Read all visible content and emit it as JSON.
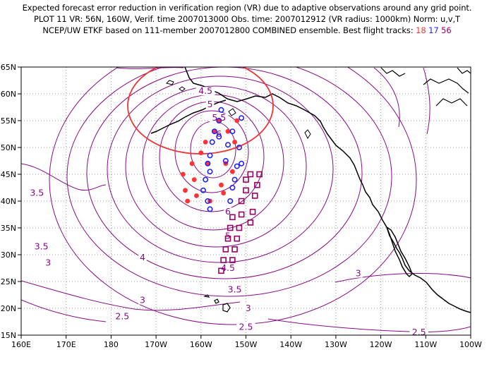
{
  "header": {
    "line1": "Expected forecast error reduction in verification region (VR) due to adaptive observations around any grid point.",
    "line2": "PLOT 11 VR: 56N, 160W, Verif. time 2007013000 Obs. time: 2007012912 (VR radius: 1000km) Norm: u,v,T",
    "line3_prefix": "NCEP/UW ETKF based on 111-member 2007012800 COMBINED ensemble.  Best flight tracks:",
    "track_ids": [
      "18",
      "17",
      "56"
    ]
  },
  "colors": {
    "contour": "#880a88",
    "coast": "#000000",
    "grid": "#9a9a9a",
    "verification_circle": "#ee3333",
    "track_18": "#ff3333",
    "track_17": "#2222ff",
    "track_56": "#990066"
  },
  "axes": {
    "x_ticks": [
      "160E",
      "170E",
      "180",
      "170W",
      "160W",
      "150W",
      "140W",
      "130W",
      "120W",
      "110W",
      "100W"
    ],
    "y_ticks": [
      "65N",
      "60N",
      "55N",
      "50N",
      "45N",
      "40N",
      "35N",
      "30N",
      "25N",
      "20N",
      "15N"
    ],
    "lon_range_east": [
      160,
      260
    ],
    "lat_range": [
      15,
      65
    ]
  },
  "verification_region": {
    "center_lat": 56,
    "center_lon_east": 200,
    "radius_km": 1000
  },
  "contour_labels": [
    {
      "text": "4.5",
      "lon": 201,
      "lat": 60.5
    },
    {
      "text": "5",
      "lon": 202,
      "lat": 58
    },
    {
      "text": "5.5",
      "lon": 204,
      "lat": 55.5
    },
    {
      "text": "6",
      "lon": 204,
      "lat": 52.5
    },
    {
      "text": "3.5",
      "lon": 163.5,
      "lat": 41.5
    },
    {
      "text": "3.5",
      "lon": 164.5,
      "lat": 31.5
    },
    {
      "text": "3",
      "lon": 166,
      "lat": 28.5
    },
    {
      "text": "4",
      "lon": 187,
      "lat": 29.5
    },
    {
      "text": "3",
      "lon": 187,
      "lat": 21.5
    },
    {
      "text": "2.5",
      "lon": 182.5,
      "lat": 18.5
    },
    {
      "text": "6",
      "lon": 206,
      "lat": 38
    },
    {
      "text": "5",
      "lon": 206,
      "lat": 33.5
    },
    {
      "text": "4.5",
      "lon": 206,
      "lat": 27.5
    },
    {
      "text": "3.5",
      "lon": 207.5,
      "lat": 23.5
    },
    {
      "text": "3",
      "lon": 210.5,
      "lat": 20
    },
    {
      "text": "2.5",
      "lon": 210,
      "lat": 16.5
    },
    {
      "text": "3",
      "lon": 235,
      "lat": 26.5
    },
    {
      "text": "2.5",
      "lon": 248.5,
      "lat": 15.5
    }
  ],
  "tracks": [
    {
      "id": "18",
      "points": [
        [
          196,
          45
        ],
        [
          196.5,
          42
        ],
        [
          197,
          40
        ],
        [
          198,
          47
        ],
        [
          198.5,
          44
        ],
        [
          199,
          41
        ],
        [
          200,
          49
        ],
        [
          201,
          51
        ],
        [
          201.5,
          47
        ],
        [
          202,
          40
        ],
        [
          203,
          53
        ],
        [
          204,
          55
        ],
        [
          204.5,
          43
        ],
        [
          205,
          41.5
        ],
        [
          205.5,
          47
        ],
        [
          206,
          53
        ],
        [
          207,
          45.5
        ],
        [
          207.5,
          51
        ],
        [
          208,
          55
        ]
      ]
    },
    {
      "id": "17",
      "points": [
        [
          200.5,
          42
        ],
        [
          201.5,
          40
        ],
        [
          202,
          38.5
        ],
        [
          201,
          44
        ],
        [
          201.5,
          47
        ],
        [
          202,
          45.5
        ],
        [
          202,
          48.5
        ],
        [
          202.5,
          51
        ],
        [
          203,
          53
        ],
        [
          204,
          52
        ],
        [
          204,
          55
        ],
        [
          204.5,
          57
        ],
        [
          205.5,
          47.5
        ],
        [
          206,
          50.5
        ],
        [
          206.5,
          40
        ],
        [
          207,
          42.5
        ],
        [
          207.5,
          44
        ],
        [
          207,
          53
        ],
        [
          208,
          46.5
        ],
        [
          208.5,
          50
        ],
        [
          209,
          47
        ],
        [
          209,
          55.5
        ]
      ]
    },
    {
      "id": "56",
      "points": [
        [
          204.5,
          27
        ],
        [
          205,
          29
        ],
        [
          205.5,
          31
        ],
        [
          206,
          33
        ],
        [
          206.5,
          35
        ],
        [
          207,
          37
        ],
        [
          207,
          29
        ],
        [
          207.5,
          31
        ],
        [
          208,
          33
        ],
        [
          208.5,
          35
        ],
        [
          209,
          37.5
        ],
        [
          209,
          40
        ],
        [
          210,
          42
        ],
        [
          210,
          44
        ],
        [
          211,
          45
        ],
        [
          211,
          36
        ],
        [
          211.5,
          38
        ],
        [
          212,
          41
        ],
        [
          212.5,
          43
        ],
        [
          213,
          45
        ]
      ]
    }
  ]
}
